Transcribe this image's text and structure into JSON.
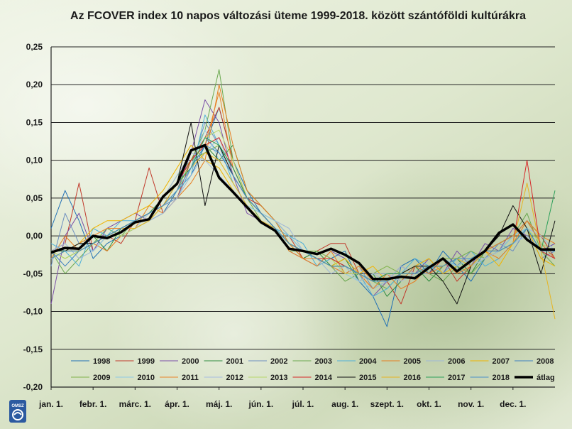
{
  "chart_data": {
    "type": "line",
    "title": "Az FCOVER index 10 napos változási üteme 1999-2018. között szántóföldi kultúrákra",
    "xlabel": "",
    "ylabel": "",
    "ylim": [
      -0.2,
      0.25
    ],
    "grid": true,
    "legend_position": "bottom",
    "y_ticks": [
      "0,25",
      "0,20",
      "0,15",
      "0,10",
      "0,05",
      "0,00",
      "-0,05",
      "-0,10",
      "-0,15",
      "-0,20"
    ],
    "x_tick_labels": [
      "jan. 1.",
      "febr. 1.",
      "márc. 1.",
      "ápr. 1.",
      "máj. 1.",
      "jún. 1.",
      "júl. 1.",
      "aug. 1.",
      "szept. 1.",
      "okt. 1.",
      "nov. 1.",
      "dec. 1."
    ],
    "x": [
      "01-01",
      "01-11",
      "01-21",
      "02-01",
      "02-11",
      "02-21",
      "03-01",
      "03-11",
      "03-21",
      "04-01",
      "04-11",
      "04-21",
      "05-01",
      "05-11",
      "05-21",
      "06-01",
      "06-11",
      "06-21",
      "07-01",
      "07-11",
      "07-21",
      "08-01",
      "08-11",
      "08-21",
      "09-01",
      "09-11",
      "09-21",
      "10-01",
      "10-11",
      "10-21",
      "11-01",
      "11-11",
      "11-21",
      "12-01",
      "12-11",
      "12-21",
      "12-31"
    ],
    "series": [
      {
        "name": "1998",
        "color": "#1f6fb5",
        "width": 1,
        "values": [
          0.01,
          0.06,
          0.02,
          -0.03,
          -0.01,
          0.0,
          0.01,
          0.02,
          0.03,
          0.06,
          0.08,
          0.12,
          0.17,
          0.1,
          0.06,
          0.03,
          0.02,
          0.0,
          -0.02,
          -0.03,
          -0.03,
          -0.02,
          -0.06,
          -0.08,
          -0.12,
          -0.04,
          -0.03,
          -0.05,
          -0.02,
          -0.04,
          -0.06,
          -0.03,
          -0.01,
          0.0,
          0.01,
          -0.02,
          -0.01
        ]
      },
      {
        "name": "1999",
        "color": "#c0392b",
        "width": 1,
        "values": [
          -0.02,
          -0.01,
          0.07,
          -0.02,
          0.0,
          -0.01,
          0.02,
          0.09,
          0.03,
          0.05,
          0.1,
          0.13,
          0.17,
          0.1,
          0.05,
          0.04,
          0.02,
          0.0,
          -0.03,
          -0.02,
          -0.01,
          -0.01,
          -0.05,
          -0.07,
          -0.06,
          -0.09,
          -0.04,
          -0.05,
          -0.03,
          -0.06,
          -0.04,
          -0.02,
          -0.01,
          0.0,
          0.02,
          0.0,
          -0.03
        ]
      },
      {
        "name": "2000",
        "color": "#7a4ea8",
        "width": 1,
        "values": [
          -0.09,
          0.0,
          0.03,
          -0.02,
          0.01,
          0.02,
          0.03,
          0.02,
          0.04,
          0.06,
          0.11,
          0.18,
          0.15,
          0.08,
          0.03,
          0.02,
          0.01,
          -0.02,
          -0.03,
          -0.04,
          -0.02,
          -0.03,
          -0.05,
          -0.08,
          -0.06,
          -0.04,
          -0.05,
          -0.03,
          -0.05,
          -0.02,
          -0.04,
          -0.01,
          -0.02,
          0.01,
          0.0,
          -0.02,
          -0.01
        ]
      },
      {
        "name": "2001",
        "color": "#2e8b3e",
        "width": 1,
        "values": [
          -0.03,
          -0.02,
          -0.01,
          0.0,
          -0.02,
          0.01,
          0.02,
          0.03,
          0.05,
          0.07,
          0.09,
          0.12,
          0.1,
          0.12,
          0.06,
          0.04,
          0.02,
          -0.01,
          -0.03,
          -0.02,
          -0.04,
          -0.03,
          -0.06,
          -0.05,
          -0.08,
          -0.06,
          -0.04,
          -0.06,
          -0.04,
          -0.03,
          -0.05,
          -0.02,
          -0.01,
          0.0,
          0.02,
          -0.01,
          -0.02
        ]
      },
      {
        "name": "2002",
        "color": "#6c8ebf",
        "width": 1,
        "values": [
          -0.04,
          0.03,
          -0.01,
          -0.02,
          0.0,
          0.01,
          0.01,
          0.02,
          0.04,
          0.05,
          0.09,
          0.15,
          0.12,
          0.09,
          0.05,
          0.03,
          0.01,
          -0.01,
          -0.02,
          -0.03,
          -0.04,
          -0.05,
          -0.04,
          -0.07,
          -0.05,
          -0.06,
          -0.04,
          -0.03,
          -0.05,
          -0.04,
          -0.02,
          -0.03,
          -0.01,
          -0.02,
          0.01,
          -0.03,
          -0.02
        ]
      },
      {
        "name": "2003",
        "color": "#6aa84f",
        "width": 1,
        "values": [
          -0.02,
          -0.05,
          -0.03,
          -0.01,
          0.01,
          0.0,
          0.02,
          0.03,
          0.05,
          0.08,
          0.1,
          0.14,
          0.22,
          0.1,
          0.05,
          0.03,
          0.01,
          -0.02,
          -0.02,
          -0.03,
          -0.04,
          -0.06,
          -0.05,
          -0.06,
          -0.07,
          -0.05,
          -0.04,
          -0.05,
          -0.06,
          -0.04,
          -0.05,
          -0.03,
          -0.02,
          0.0,
          0.03,
          -0.02,
          -0.04
        ]
      },
      {
        "name": "2004",
        "color": "#4fb0d8",
        "width": 1,
        "values": [
          -0.01,
          -0.02,
          -0.04,
          0.01,
          0.0,
          0.02,
          0.02,
          0.03,
          0.04,
          0.06,
          0.08,
          0.16,
          0.12,
          0.07,
          0.04,
          0.03,
          0.01,
          0.0,
          -0.01,
          -0.04,
          -0.03,
          -0.04,
          -0.05,
          -0.08,
          -0.07,
          -0.05,
          -0.03,
          -0.04,
          -0.05,
          -0.03,
          -0.02,
          -0.04,
          -0.03,
          -0.01,
          0.0,
          -0.02,
          -0.03
        ]
      },
      {
        "name": "2005",
        "color": "#e67e22",
        "width": 1,
        "values": [
          -0.03,
          0.0,
          -0.02,
          -0.01,
          -0.02,
          0.0,
          0.01,
          0.04,
          0.03,
          0.05,
          0.07,
          0.1,
          0.2,
          0.12,
          0.06,
          0.04,
          0.02,
          -0.01,
          -0.03,
          -0.04,
          -0.02,
          -0.05,
          -0.04,
          -0.06,
          -0.05,
          -0.07,
          -0.06,
          -0.04,
          -0.03,
          -0.05,
          -0.04,
          -0.02,
          -0.03,
          -0.01,
          0.02,
          0.0,
          -0.01
        ]
      },
      {
        "name": "2006",
        "color": "#9fb7d9",
        "width": 1,
        "values": [
          -0.02,
          -0.01,
          -0.03,
          -0.02,
          0.0,
          0.01,
          0.01,
          0.02,
          0.03,
          0.05,
          0.08,
          0.11,
          0.13,
          0.08,
          0.05,
          0.03,
          0.02,
          0.01,
          -0.02,
          -0.03,
          -0.05,
          -0.04,
          -0.06,
          -0.05,
          -0.06,
          -0.04,
          -0.05,
          -0.05,
          -0.04,
          -0.03,
          -0.04,
          -0.03,
          -0.02,
          -0.01,
          0.01,
          0.0,
          -0.02
        ]
      },
      {
        "name": "2007",
        "color": "#f0b400",
        "width": 1,
        "values": [
          -0.03,
          -0.02,
          -0.01,
          0.01,
          0.02,
          0.02,
          0.03,
          0.04,
          0.06,
          0.09,
          0.12,
          0.1,
          0.09,
          0.06,
          0.04,
          0.02,
          0.01,
          -0.01,
          -0.02,
          -0.03,
          -0.04,
          -0.03,
          -0.05,
          -0.04,
          -0.06,
          -0.05,
          -0.04,
          -0.03,
          -0.05,
          -0.04,
          -0.03,
          -0.02,
          -0.04,
          -0.01,
          0.01,
          -0.03,
          -0.04
        ]
      },
      {
        "name": "2008",
        "color": "#3d7fc1",
        "width": 1,
        "values": [
          -0.02,
          -0.04,
          -0.02,
          -0.01,
          0.0,
          0.01,
          0.02,
          0.03,
          0.05,
          0.07,
          0.09,
          0.13,
          0.11,
          0.08,
          0.05,
          0.03,
          0.01,
          -0.01,
          -0.02,
          -0.03,
          -0.03,
          -0.04,
          -0.05,
          -0.06,
          -0.05,
          -0.06,
          -0.04,
          -0.04,
          -0.03,
          -0.04,
          -0.03,
          -0.03,
          -0.02,
          0.0,
          0.02,
          -0.01,
          -0.03
        ]
      },
      {
        "name": "2009",
        "color": "#7fb24a",
        "width": 1,
        "values": [
          -0.02,
          -0.03,
          -0.02,
          -0.01,
          0.0,
          0.01,
          0.02,
          0.03,
          0.04,
          0.06,
          0.1,
          0.11,
          0.12,
          0.09,
          0.05,
          0.02,
          0.01,
          -0.01,
          -0.02,
          -0.02,
          -0.03,
          -0.04,
          -0.06,
          -0.05,
          -0.04,
          -0.05,
          -0.05,
          -0.04,
          -0.03,
          -0.03,
          -0.02,
          -0.03,
          -0.02,
          -0.01,
          0.01,
          -0.02,
          -0.02
        ]
      },
      {
        "name": "2010",
        "color": "#8ec9e6",
        "width": 1,
        "values": [
          -0.03,
          -0.02,
          -0.01,
          -0.02,
          0.0,
          0.0,
          0.01,
          0.02,
          0.04,
          0.06,
          0.09,
          0.14,
          0.1,
          0.07,
          0.04,
          0.03,
          0.02,
          0.0,
          -0.02,
          -0.03,
          -0.04,
          -0.05,
          -0.06,
          -0.07,
          -0.06,
          -0.05,
          -0.04,
          -0.04,
          -0.03,
          -0.04,
          -0.03,
          -0.02,
          -0.02,
          0.0,
          0.01,
          -0.01,
          -0.02
        ]
      },
      {
        "name": "2011",
        "color": "#e8842a",
        "width": 1,
        "values": [
          -0.02,
          -0.02,
          -0.01,
          0.0,
          0.01,
          0.01,
          0.02,
          0.03,
          0.05,
          0.07,
          0.1,
          0.12,
          0.19,
          0.09,
          0.05,
          0.03,
          0.01,
          -0.02,
          -0.03,
          -0.03,
          -0.04,
          -0.05,
          -0.05,
          -0.07,
          -0.05,
          -0.06,
          -0.04,
          -0.05,
          -0.04,
          -0.03,
          -0.03,
          -0.02,
          -0.01,
          0.0,
          0.02,
          -0.01,
          -0.03
        ]
      },
      {
        "name": "2012",
        "color": "#a7bce0",
        "width": 1,
        "values": [
          -0.03,
          -0.02,
          -0.02,
          -0.01,
          0.0,
          0.01,
          0.01,
          0.03,
          0.05,
          0.08,
          0.11,
          0.1,
          0.08,
          0.06,
          0.04,
          0.02,
          0.01,
          -0.01,
          -0.02,
          -0.03,
          -0.04,
          -0.04,
          -0.06,
          -0.05,
          -0.05,
          -0.06,
          -0.05,
          -0.04,
          -0.04,
          -0.03,
          -0.03,
          -0.03,
          -0.02,
          -0.01,
          0.0,
          -0.02,
          -0.03
        ]
      },
      {
        "name": "2013",
        "color": "#b7d76b",
        "width": 1,
        "values": [
          -0.02,
          -0.03,
          -0.02,
          -0.01,
          0.0,
          0.0,
          0.01,
          0.02,
          0.04,
          0.06,
          0.09,
          0.13,
          0.14,
          0.1,
          0.05,
          0.03,
          0.01,
          -0.01,
          -0.02,
          -0.03,
          -0.03,
          -0.05,
          -0.05,
          -0.06,
          -0.06,
          -0.05,
          -0.04,
          -0.04,
          -0.04,
          -0.03,
          -0.03,
          -0.02,
          -0.02,
          -0.01,
          0.01,
          -0.01,
          -0.02
        ]
      },
      {
        "name": "2014",
        "color": "#d62728",
        "width": 1,
        "values": [
          -0.02,
          -0.02,
          -0.02,
          -0.01,
          0.0,
          0.01,
          0.02,
          0.03,
          0.05,
          0.07,
          0.1,
          0.12,
          0.13,
          0.09,
          0.05,
          0.03,
          0.01,
          -0.01,
          -0.02,
          -0.03,
          -0.03,
          -0.04,
          -0.05,
          -0.06,
          -0.06,
          -0.05,
          -0.05,
          -0.04,
          -0.04,
          -0.03,
          -0.03,
          -0.02,
          -0.02,
          -0.01,
          0.1,
          -0.02,
          -0.03
        ]
      },
      {
        "name": "2015",
        "color": "#111111",
        "width": 1,
        "values": [
          -0.02,
          -0.02,
          -0.01,
          -0.01,
          0.0,
          0.01,
          0.02,
          0.03,
          0.04,
          0.07,
          0.15,
          0.04,
          0.12,
          0.08,
          0.05,
          0.03,
          0.01,
          -0.01,
          -0.02,
          -0.03,
          -0.04,
          -0.04,
          -0.05,
          -0.06,
          -0.06,
          -0.05,
          -0.04,
          -0.04,
          -0.06,
          -0.09,
          -0.04,
          -0.02,
          0.0,
          0.04,
          0.01,
          -0.05,
          0.02
        ]
      },
      {
        "name": "2016",
        "color": "#e6b422",
        "width": 1,
        "values": [
          -0.03,
          -0.02,
          -0.02,
          -0.01,
          0.0,
          0.01,
          0.01,
          0.02,
          0.04,
          0.07,
          0.09,
          0.11,
          0.1,
          0.07,
          0.04,
          0.02,
          0.01,
          -0.01,
          -0.02,
          -0.03,
          -0.04,
          -0.04,
          -0.05,
          -0.06,
          -0.06,
          -0.05,
          -0.05,
          -0.04,
          -0.04,
          -0.03,
          -0.04,
          -0.02,
          -0.02,
          -0.01,
          0.07,
          -0.02,
          -0.11
        ]
      },
      {
        "name": "2017",
        "color": "#2ca05a",
        "width": 1,
        "values": [
          -0.02,
          -0.02,
          -0.02,
          -0.01,
          0.0,
          0.01,
          0.02,
          0.03,
          0.05,
          0.07,
          0.09,
          0.13,
          0.12,
          0.09,
          0.05,
          0.03,
          0.01,
          -0.01,
          -0.02,
          -0.03,
          -0.04,
          -0.04,
          -0.05,
          -0.06,
          -0.05,
          -0.05,
          -0.05,
          -0.04,
          -0.04,
          -0.03,
          -0.03,
          -0.02,
          -0.02,
          -0.01,
          0.01,
          -0.02,
          0.06
        ]
      },
      {
        "name": "2018",
        "color": "#4a90c9",
        "width": 1,
        "values": [
          -0.03,
          -0.02,
          -0.02,
          -0.01,
          0.0,
          0.01,
          0.02,
          0.03,
          0.04,
          0.06,
          0.09,
          0.12,
          0.11,
          0.08,
          0.05,
          0.03,
          0.01,
          -0.01,
          -0.02,
          -0.03,
          -0.04,
          -0.04,
          -0.05,
          -0.06,
          -0.06,
          -0.05,
          -0.05,
          -0.04,
          -0.04,
          -0.03,
          -0.03,
          -0.02,
          -0.02,
          -0.01,
          0.01,
          -0.02,
          -0.02
        ]
      },
      {
        "name": "átlag",
        "color": "#000000",
        "width": 3.5,
        "values": [
          -0.022,
          -0.016,
          -0.017,
          0.0,
          -0.003,
          0.005,
          0.018,
          0.022,
          0.052,
          0.069,
          0.113,
          0.12,
          0.077,
          0.058,
          0.038,
          0.018,
          0.007,
          -0.017,
          -0.02,
          -0.024,
          -0.017,
          -0.025,
          -0.036,
          -0.057,
          -0.057,
          -0.054,
          -0.056,
          -0.042,
          -0.03,
          -0.047,
          -0.033,
          -0.02,
          0.004,
          0.015,
          -0.005,
          -0.018,
          -0.018
        ]
      }
    ]
  }
}
